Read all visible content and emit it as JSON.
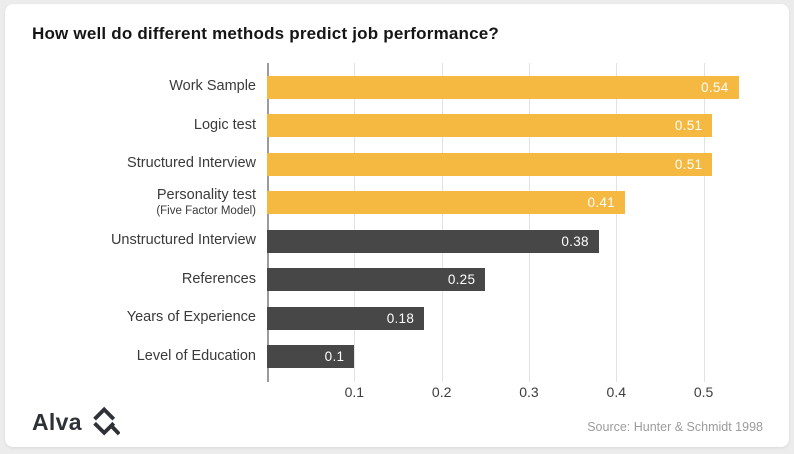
{
  "title": "How well do different methods predict job performance?",
  "chart_data": {
    "type": "bar",
    "orientation": "horizontal",
    "items": [
      {
        "label": "Work Sample",
        "sublabel": "",
        "value": 0.54,
        "display": "0.54",
        "color": "#F5B840"
      },
      {
        "label": "Logic test",
        "sublabel": "",
        "value": 0.51,
        "display": "0.51",
        "color": "#F5B840"
      },
      {
        "label": "Structured Interview",
        "sublabel": "",
        "value": 0.51,
        "display": "0.51",
        "color": "#F5B840"
      },
      {
        "label": "Personality test",
        "sublabel": "(Five Factor Model)",
        "value": 0.41,
        "display": "0.41",
        "color": "#F5B840"
      },
      {
        "label": "Unstructured Interview",
        "sublabel": "",
        "value": 0.38,
        "display": "0.38",
        "color": "#474747"
      },
      {
        "label": "References",
        "sublabel": "",
        "value": 0.25,
        "display": "0.25",
        "color": "#474747"
      },
      {
        "label": "Years of Experience",
        "sublabel": "",
        "value": 0.18,
        "display": "0.18",
        "color": "#474747"
      },
      {
        "label": "Level of Education",
        "sublabel": "",
        "value": 0.1,
        "display": "0.1",
        "color": "#474747"
      }
    ],
    "xticks": [
      {
        "value": 0.1,
        "label": "0.1"
      },
      {
        "value": 0.2,
        "label": "0.2"
      },
      {
        "value": 0.3,
        "label": "0.3"
      },
      {
        "value": 0.4,
        "label": "0.4"
      },
      {
        "value": 0.5,
        "label": "0.5"
      }
    ],
    "xlim": [
      0,
      0.568
    ],
    "grid": true,
    "legend": false
  },
  "source": "Source: Hunter & Schmidt 1998",
  "logo": {
    "text": "Alva"
  },
  "colors": {
    "highlight_bar": "#F5B840",
    "default_bar": "#474747",
    "gridline": "#e2e2e2",
    "axis_line": "#9b9b9b",
    "value_text": "#ffffff",
    "background": "#ffffff"
  }
}
